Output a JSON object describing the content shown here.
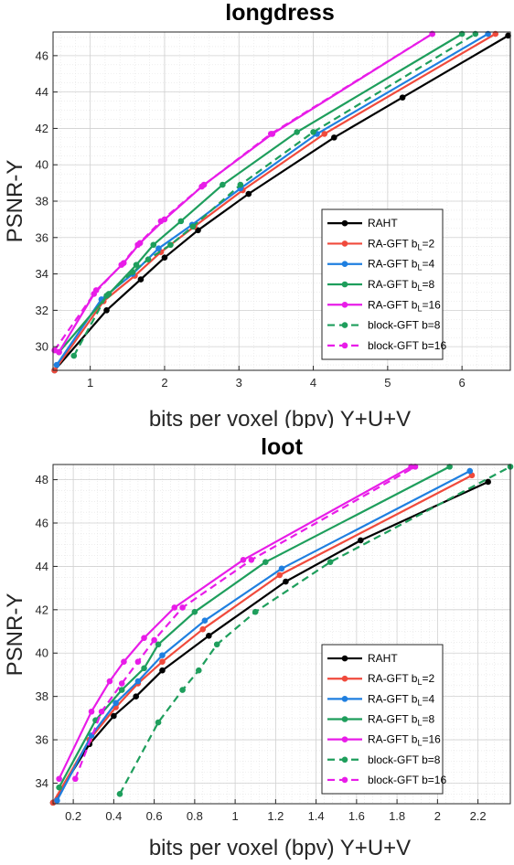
{
  "chart_data": [
    {
      "type": "line",
      "title": "longdress",
      "xlabel": "bits per voxel (bpv) Y+U+V",
      "ylabel": "PSNR-Y",
      "xlim": [
        0.5,
        6.65
      ],
      "ylim": [
        28.7,
        47.3
      ],
      "x_ticks": [
        1,
        2,
        3,
        4,
        5,
        6
      ],
      "y_ticks": [
        30,
        32,
        34,
        36,
        38,
        40,
        42,
        44,
        46
      ],
      "grid": true,
      "minor_grid": true,
      "legend_position": "lower-right",
      "series": [
        {
          "name": "RAHT",
          "color": "#000000",
          "dash": "solid",
          "x": [
            0.52,
            1.22,
            1.68,
            2.0,
            2.45,
            3.13,
            4.28,
            5.2,
            6.62
          ],
          "y": [
            28.7,
            32.0,
            33.7,
            34.9,
            36.4,
            38.4,
            41.5,
            43.7,
            47.1
          ]
        },
        {
          "name": "RA-GFT b_L=2",
          "color": "#f04a3c",
          "dash": "solid",
          "x": [
            0.52,
            1.18,
            1.6,
            1.95,
            2.4,
            3.05,
            4.15,
            6.45
          ],
          "y": [
            28.7,
            32.5,
            33.9,
            35.2,
            36.6,
            38.6,
            41.7,
            47.2
          ]
        },
        {
          "name": "RA-GFT b_L=4",
          "color": "#1f7fe0",
          "dash": "solid",
          "x": [
            0.55,
            1.15,
            1.57,
            1.92,
            2.37,
            3.02,
            4.05,
            6.35
          ],
          "y": [
            29.0,
            32.6,
            34.0,
            35.4,
            36.7,
            38.7,
            41.7,
            47.2
          ]
        },
        {
          "name": "RA-GFT b_L=8",
          "color": "#1e9e5c",
          "dash": "solid",
          "x": [
            0.58,
            1.25,
            1.62,
            1.85,
            2.22,
            2.78,
            3.78,
            6.0
          ],
          "y": [
            29.7,
            32.9,
            34.5,
            35.6,
            36.9,
            38.9,
            41.8,
            47.2
          ]
        },
        {
          "name": "RA-GFT b_L=16",
          "color": "#e81ce8",
          "dash": "solid",
          "x": [
            0.58,
            1.08,
            1.45,
            1.67,
            2.0,
            2.53,
            3.45,
            5.6
          ],
          "y": [
            29.7,
            33.1,
            34.6,
            35.7,
            37.0,
            38.9,
            41.7,
            47.2
          ]
        },
        {
          "name": "block-GFT b=8",
          "color": "#1e9e5c",
          "dash": "dashed",
          "x": [
            0.78,
            1.22,
            1.57,
            1.78,
            2.08,
            2.38,
            3.02,
            4.0,
            6.18
          ],
          "y": [
            29.5,
            32.8,
            34.1,
            34.8,
            35.6,
            36.6,
            38.9,
            41.8,
            47.2
          ]
        },
        {
          "name": "block-GFT b=16",
          "color": "#e81ce8",
          "dash": "dashed",
          "x": [
            0.52,
            1.05,
            1.42,
            1.64,
            1.95,
            2.5,
            3.43,
            5.6
          ],
          "y": [
            29.8,
            32.9,
            34.5,
            35.6,
            36.9,
            38.8,
            41.7,
            47.2
          ]
        }
      ]
    },
    {
      "type": "line",
      "title": "loot",
      "xlabel": "bits per voxel (bpv) Y+U+V",
      "ylabel": "PSNR-Y",
      "xlim": [
        0.1,
        2.36
      ],
      "ylim": [
        33.05,
        48.7
      ],
      "x_ticks": [
        0.2,
        0.4,
        0.6,
        0.8,
        1,
        1.2,
        1.4,
        1.6,
        1.8,
        2,
        2.2
      ],
      "y_ticks": [
        34,
        36,
        38,
        40,
        42,
        44,
        46,
        48
      ],
      "grid": true,
      "minor_grid": true,
      "legend_position": "lower-right",
      "series": [
        {
          "name": "RAHT",
          "color": "#000000",
          "dash": "solid",
          "x": [
            0.1,
            0.28,
            0.4,
            0.51,
            0.64,
            0.87,
            1.25,
            1.62,
            2.25
          ],
          "y": [
            33.1,
            35.8,
            37.1,
            38.0,
            39.2,
            40.8,
            43.3,
            45.2,
            47.9
          ]
        },
        {
          "name": "RA-GFT b_L=2",
          "color": "#f04a3c",
          "dash": "solid",
          "x": [
            0.1,
            0.28,
            0.41,
            0.52,
            0.64,
            0.84,
            1.22,
            2.17
          ],
          "y": [
            33.1,
            36.0,
            37.5,
            38.6,
            39.6,
            41.1,
            43.6,
            48.2
          ]
        },
        {
          "name": "RA-GFT b_L=4",
          "color": "#1f7fe0",
          "dash": "solid",
          "x": [
            0.12,
            0.29,
            0.41,
            0.52,
            0.64,
            0.85,
            1.23,
            2.16
          ],
          "y": [
            33.2,
            36.2,
            37.7,
            38.7,
            39.9,
            41.5,
            43.9,
            48.4
          ]
        },
        {
          "name": "RA-GFT b_L=8",
          "color": "#1e9e5c",
          "dash": "solid",
          "x": [
            0.13,
            0.31,
            0.44,
            0.55,
            0.62,
            0.8,
            1.15,
            2.06
          ],
          "y": [
            33.8,
            36.9,
            38.3,
            39.3,
            40.4,
            41.9,
            44.2,
            48.6
          ]
        },
        {
          "name": "RA-GFT b_L=16",
          "color": "#e81ce8",
          "dash": "solid",
          "x": [
            0.13,
            0.29,
            0.38,
            0.45,
            0.55,
            0.7,
            1.04,
            1.87
          ],
          "y": [
            34.2,
            37.3,
            38.7,
            39.6,
            40.7,
            42.1,
            44.3,
            48.6
          ]
        },
        {
          "name": "block-GFT b=8",
          "color": "#1e9e5c",
          "dash": "dashed",
          "x": [
            0.43,
            0.62,
            0.74,
            0.82,
            0.91,
            1.1,
            1.47,
            2.36
          ],
          "y": [
            33.5,
            36.8,
            38.3,
            39.2,
            40.4,
            41.9,
            44.2,
            48.6
          ]
        },
        {
          "name": "block-GFT b=16",
          "color": "#e81ce8",
          "dash": "dashed",
          "x": [
            0.21,
            0.34,
            0.44,
            0.52,
            0.6,
            0.74,
            1.08,
            1.89
          ],
          "y": [
            34.2,
            37.3,
            38.6,
            39.6,
            40.6,
            42.1,
            44.3,
            48.6
          ]
        }
      ]
    }
  ]
}
